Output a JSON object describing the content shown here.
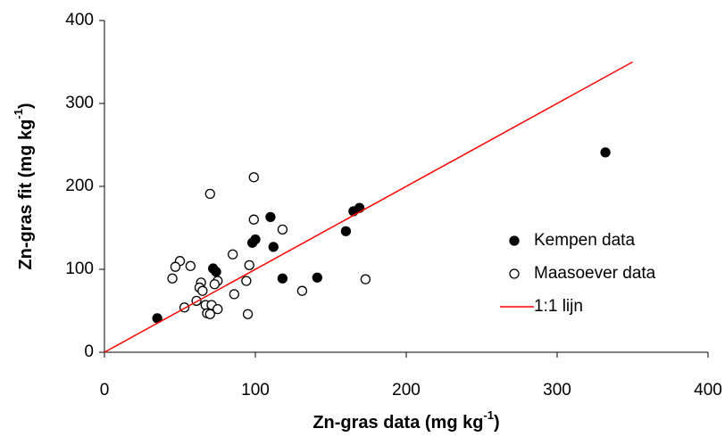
{
  "chart_data": {
    "type": "scatter",
    "xlabel": {
      "text": "Zn-gras data (mg kg",
      "sup": "-1",
      "end": ")"
    },
    "ylabel": {
      "text": "Zn-gras fit (mg kg",
      "sup": "-1",
      "end": ")"
    },
    "xlim": [
      0,
      400
    ],
    "ylim": [
      0,
      400
    ],
    "xticks": [
      0,
      100,
      200,
      300,
      400
    ],
    "yticks": [
      0,
      100,
      200,
      300,
      400
    ],
    "legend": "right",
    "series": [
      {
        "name": "Kempen data",
        "color": "#000000",
        "marker": "filled",
        "x": [
          35,
          110,
          169,
          165,
          160,
          332,
          100,
          98,
          112,
          72,
          74,
          118,
          141
        ],
        "values": [
          41,
          163,
          174,
          170,
          146,
          241,
          136,
          132,
          127,
          101,
          97,
          89,
          90
        ]
      },
      {
        "name": "Maasoever data",
        "color": "#000000",
        "marker": "open",
        "x": [
          70,
          99,
          99,
          118,
          85,
          96,
          57,
          50,
          47,
          45,
          64,
          63,
          65,
          75,
          94,
          86,
          73,
          61,
          53,
          67,
          71,
          75,
          68,
          70,
          95,
          131,
          173
        ],
        "values": [
          191,
          211,
          160,
          148,
          118,
          105,
          104,
          110,
          103,
          89,
          84,
          78,
          74,
          86,
          86,
          70,
          82,
          62,
          54,
          57,
          57,
          52,
          47,
          46,
          46,
          74,
          88
        ]
      },
      {
        "name": "1:1 lijn",
        "color": "#ff0000",
        "marker": "line",
        "x": [
          0,
          350
        ],
        "values": [
          0,
          350
        ]
      }
    ]
  }
}
